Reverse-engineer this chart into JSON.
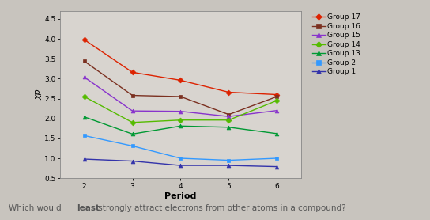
{
  "title": "",
  "xlabel": "Period",
  "ylabel": "χp",
  "xlim": [
    1.5,
    6.5
  ],
  "ylim": [
    0.5,
    4.7
  ],
  "xticks": [
    2,
    3,
    4,
    5,
    6
  ],
  "yticks": [
    0.5,
    1.0,
    1.5,
    2.0,
    2.5,
    3.0,
    3.5,
    4.0,
    4.5
  ],
  "fig_bg_color": "#c8c4be",
  "plot_bg_color": "#d8d4cf",
  "groups": {
    "Group 17": {
      "color": "#dd2200",
      "marker": "D",
      "markersize": 3.5,
      "data": {
        "2": 3.98,
        "3": 3.16,
        "4": 2.96,
        "5": 2.66,
        "6": 2.6
      }
    },
    "Group 16": {
      "color": "#7b3020",
      "marker": "s",
      "markersize": 3.5,
      "data": {
        "2": 3.44,
        "3": 2.58,
        "4": 2.55,
        "5": 2.1,
        "6": 2.55
      }
    },
    "Group 15": {
      "color": "#8833cc",
      "marker": "^",
      "markersize": 3.5,
      "data": {
        "2": 3.04,
        "3": 2.19,
        "4": 2.18,
        "5": 2.05,
        "6": 2.2
      }
    },
    "Group 14": {
      "color": "#55bb00",
      "marker": "D",
      "markersize": 3.5,
      "data": {
        "2": 2.55,
        "3": 1.9,
        "4": 1.96,
        "5": 1.96,
        "6": 2.45
      }
    },
    "Group 13": {
      "color": "#009933",
      "marker": "^",
      "markersize": 3.5,
      "data": {
        "2": 2.04,
        "3": 1.61,
        "4": 1.81,
        "5": 1.78,
        "6": 1.62
      }
    },
    "Group 2": {
      "color": "#3399ff",
      "marker": "s",
      "markersize": 3.5,
      "data": {
        "2": 1.57,
        "3": 1.31,
        "4": 1.0,
        "5": 0.95,
        "6": 1.0
      }
    },
    "Group 1": {
      "color": "#3333aa",
      "marker": "^",
      "markersize": 3.5,
      "data": {
        "2": 0.98,
        "3": 0.93,
        "4": 0.82,
        "5": 0.82,
        "6": 0.79
      }
    }
  },
  "legend_order": [
    "Group 17",
    "Group 16",
    "Group 15",
    "Group 14",
    "Group 13",
    "Group 2",
    "Group 1"
  ],
  "bottom_text_color": "#555555",
  "linewidth": 1.0
}
